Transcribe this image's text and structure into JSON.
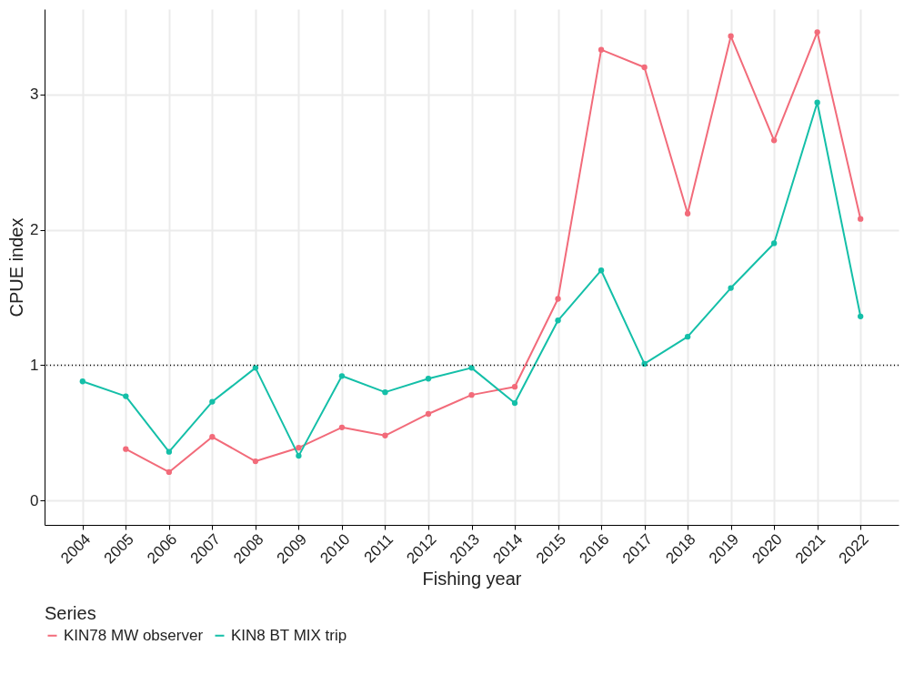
{
  "chart_data": {
    "type": "line",
    "xlabel": "Fishing year",
    "ylabel": "CPUE index",
    "legend_title": "Series",
    "categories": [
      "2004",
      "2005",
      "2006",
      "2007",
      "2008",
      "2009",
      "2010",
      "2011",
      "2012",
      "2013",
      "2014",
      "2015",
      "2016",
      "2017",
      "2018",
      "2019",
      "2020",
      "2021",
      "2022"
    ],
    "series": [
      {
        "name": "KIN78 MW observer",
        "color": "#f26b7a",
        "values": [
          null,
          0.38,
          0.21,
          0.47,
          0.29,
          0.39,
          0.54,
          0.48,
          0.64,
          0.78,
          0.84,
          1.49,
          3.33,
          3.2,
          2.12,
          3.43,
          2.66,
          3.46,
          2.08
        ]
      },
      {
        "name": "KIN8 BT MIX trip",
        "color": "#14bfa8",
        "values": [
          0.88,
          0.77,
          0.36,
          0.73,
          0.98,
          0.33,
          0.92,
          0.8,
          0.9,
          0.98,
          0.72,
          1.33,
          1.7,
          1.01,
          1.21,
          1.57,
          1.9,
          2.94,
          1.36
        ]
      }
    ],
    "ylim": [
      -0.18,
      3.63
    ],
    "yticks": [
      0,
      1,
      2,
      3
    ],
    "grid": true,
    "legend": "bottom",
    "marker": "circle",
    "line_style": "solid",
    "ref_lines": [
      {
        "axis": "y",
        "value": 1,
        "line_style": "dotted",
        "color": "#000000"
      }
    ]
  }
}
